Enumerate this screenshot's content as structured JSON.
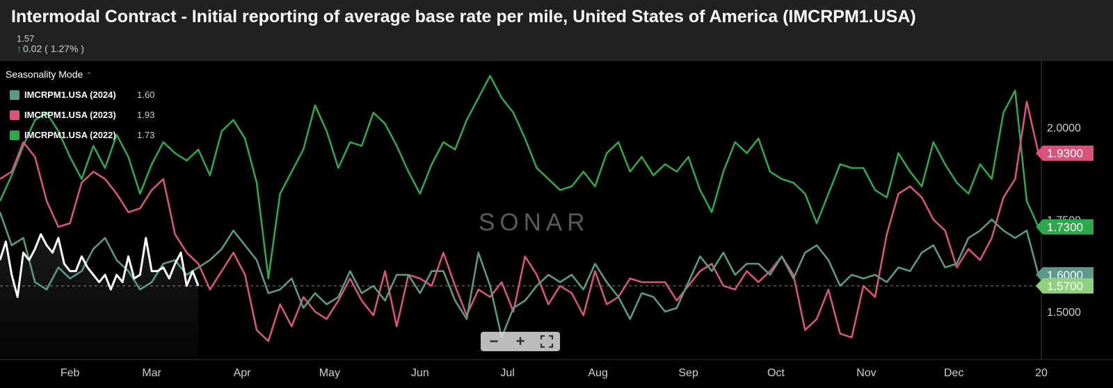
{
  "header": {
    "title": "Intermodal Contract - Initial reporting of average base rate per mile, United States of America (IMCRPM1.USA)",
    "last_value": "1.57",
    "change": "0.02 ( 1.27% )"
  },
  "legend": {
    "title": "Seasonality Mode",
    "items": [
      {
        "name": "IMCRPM1.USA (2024)",
        "value": "1.60",
        "color": "#5b9a8b"
      },
      {
        "name": "IMCRPM1.USA (2023)",
        "value": "1.93",
        "color": "#d9547c"
      },
      {
        "name": "IMCRPM1.USA (2022)",
        "value": "1.73",
        "color": "#2ea84c"
      }
    ]
  },
  "watermark": "SONAR",
  "chart_data": {
    "type": "line",
    "x_unit": "day of year",
    "xlim": [
      8,
      365
    ],
    "ylim": [
      1.37,
      2.18
    ],
    "x_ticks": [
      {
        "label": "Feb",
        "x": 32
      },
      {
        "label": "Mar",
        "x": 60
      },
      {
        "label": "Apr",
        "x": 91
      },
      {
        "label": "May",
        "x": 121
      },
      {
        "label": "Jun",
        "x": 152
      },
      {
        "label": "Jul",
        "x": 182
      },
      {
        "label": "Aug",
        "x": 213
      },
      {
        "label": "Sep",
        "x": 244
      },
      {
        "label": "Oct",
        "x": 274
      },
      {
        "label": "Nov",
        "x": 305
      },
      {
        "label": "Dec",
        "x": 335
      },
      {
        "label": "20",
        "x": 365
      }
    ],
    "y_ticks": [
      "1.5000",
      "1.7500",
      "2.0000"
    ],
    "current_line": 1.57,
    "series": [
      {
        "name": "2022",
        "color": "#2ea84c",
        "x": [
          8,
          12,
          16,
          20,
          24,
          28,
          32,
          36,
          40,
          44,
          48,
          52,
          56,
          60,
          64,
          68,
          72,
          76,
          80,
          84,
          88,
          92,
          96,
          100,
          104,
          108,
          112,
          116,
          120,
          124,
          128,
          132,
          136,
          140,
          144,
          148,
          152,
          156,
          160,
          164,
          168,
          172,
          176,
          180,
          184,
          188,
          192,
          196,
          200,
          204,
          208,
          212,
          216,
          220,
          224,
          228,
          232,
          236,
          240,
          244,
          248,
          252,
          256,
          260,
          264,
          268,
          272,
          276,
          280,
          284,
          288,
          292,
          296,
          300,
          304,
          308,
          312,
          316,
          320,
          324,
          328,
          332,
          336,
          340,
          344,
          348,
          352,
          356,
          360,
          364
        ],
        "values": [
          1.8,
          1.87,
          1.95,
          2.02,
          2.04,
          1.99,
          1.92,
          1.86,
          1.95,
          1.89,
          1.98,
          1.92,
          1.82,
          1.9,
          1.96,
          1.93,
          1.91,
          1.94,
          1.87,
          1.99,
          2.02,
          1.97,
          1.85,
          1.59,
          1.82,
          1.88,
          1.94,
          2.06,
          1.99,
          1.89,
          1.96,
          1.95,
          2.04,
          2.01,
          1.95,
          1.88,
          1.82,
          1.9,
          1.96,
          1.94,
          2.02,
          2.08,
          2.14,
          2.08,
          2.04,
          1.97,
          1.89,
          1.86,
          1.83,
          1.84,
          1.88,
          1.84,
          1.93,
          1.96,
          1.88,
          1.92,
          1.87,
          1.9,
          1.88,
          1.92,
          1.83,
          1.77,
          1.88,
          1.96,
          1.93,
          1.97,
          1.88,
          1.86,
          1.85,
          1.82,
          1.74,
          1.82,
          1.9,
          1.89,
          1.89,
          1.83,
          1.81,
          1.93,
          1.88,
          1.84,
          1.96,
          1.9,
          1.85,
          1.82,
          1.9,
          1.86,
          2.04,
          2.1,
          1.8,
          1.73
        ]
      },
      {
        "name": "2023",
        "color": "#d9547c",
        "x": [
          8,
          12,
          16,
          20,
          24,
          28,
          32,
          36,
          40,
          44,
          48,
          52,
          56,
          60,
          64,
          68,
          72,
          76,
          80,
          84,
          88,
          92,
          96,
          100,
          104,
          108,
          112,
          116,
          120,
          124,
          128,
          132,
          136,
          140,
          144,
          148,
          152,
          156,
          160,
          164,
          168,
          172,
          176,
          180,
          184,
          188,
          192,
          196,
          200,
          204,
          208,
          212,
          216,
          220,
          224,
          228,
          232,
          236,
          240,
          244,
          248,
          252,
          256,
          260,
          264,
          268,
          272,
          276,
          280,
          284,
          288,
          292,
          296,
          300,
          304,
          308,
          312,
          316,
          320,
          324,
          328,
          332,
          336,
          340,
          344,
          348,
          352,
          356,
          360,
          364
        ],
        "values": [
          1.86,
          1.88,
          1.96,
          1.92,
          1.8,
          1.73,
          1.74,
          1.85,
          1.88,
          1.86,
          1.82,
          1.77,
          1.78,
          1.83,
          1.86,
          1.71,
          1.66,
          1.63,
          1.56,
          1.61,
          1.66,
          1.6,
          1.45,
          1.42,
          1.52,
          1.46,
          1.54,
          1.5,
          1.48,
          1.53,
          1.59,
          1.53,
          1.49,
          1.61,
          1.46,
          1.6,
          1.59,
          1.57,
          1.66,
          1.57,
          1.49,
          1.56,
          1.54,
          1.58,
          1.5,
          1.65,
          1.6,
          1.52,
          1.57,
          1.55,
          1.49,
          1.61,
          1.52,
          1.54,
          1.59,
          1.58,
          1.58,
          1.58,
          1.53,
          1.57,
          1.61,
          1.63,
          1.57,
          1.56,
          1.61,
          1.58,
          1.61,
          1.65,
          1.6,
          1.45,
          1.48,
          1.56,
          1.44,
          1.43,
          1.57,
          1.54,
          1.71,
          1.82,
          1.84,
          1.81,
          1.75,
          1.72,
          1.62,
          1.67,
          1.64,
          1.7,
          1.81,
          1.86,
          2.07,
          1.93
        ]
      },
      {
        "name": "2024",
        "color": "#5b9a8b",
        "x": [
          8,
          12,
          16,
          20,
          24,
          28,
          32,
          36,
          40,
          44,
          48,
          52,
          56,
          60,
          64,
          68,
          72,
          76,
          80,
          84,
          88,
          92,
          96,
          100,
          104,
          108,
          112,
          116,
          120,
          124,
          128,
          132,
          136,
          140,
          144,
          148,
          152,
          156,
          160,
          164,
          168,
          172,
          176,
          180,
          184,
          188,
          192,
          196,
          200,
          204,
          208,
          212,
          216,
          220,
          224,
          228,
          232,
          236,
          240,
          244,
          248,
          252,
          256,
          260,
          264,
          268,
          272,
          276,
          280,
          284,
          288,
          292,
          296,
          300,
          304,
          308,
          312,
          316,
          320,
          324,
          328,
          332,
          336,
          340,
          344,
          348,
          352,
          356,
          360,
          364
        ],
        "values": [
          1.77,
          1.68,
          1.7,
          1.58,
          1.56,
          1.62,
          1.59,
          1.61,
          1.67,
          1.7,
          1.64,
          1.61,
          1.56,
          1.58,
          1.63,
          1.64,
          1.6,
          1.62,
          1.64,
          1.67,
          1.72,
          1.68,
          1.64,
          1.55,
          1.56,
          1.59,
          1.51,
          1.55,
          1.52,
          1.54,
          1.61,
          1.55,
          1.57,
          1.53,
          1.6,
          1.6,
          1.55,
          1.61,
          1.61,
          1.53,
          1.48,
          1.66,
          1.57,
          1.43,
          1.51,
          1.53,
          1.57,
          1.6,
          1.58,
          1.6,
          1.56,
          1.63,
          1.58,
          1.54,
          1.48,
          1.55,
          1.54,
          1.5,
          1.51,
          1.58,
          1.65,
          1.61,
          1.66,
          1.6,
          1.63,
          1.63,
          1.6,
          1.65,
          1.59,
          1.66,
          1.68,
          1.64,
          1.57,
          1.6,
          1.59,
          1.6,
          1.58,
          1.62,
          1.61,
          1.66,
          1.68,
          1.62,
          1.63,
          1.7,
          1.72,
          1.75,
          1.72,
          1.7,
          1.72,
          1.6
        ]
      },
      {
        "name": "current",
        "color": "#ffffff",
        "x": [
          8,
          10,
          12,
          14,
          16,
          18,
          20,
          22,
          24,
          26,
          28,
          30,
          32,
          34,
          36,
          38,
          40,
          42,
          44,
          46,
          48,
          50,
          52,
          54,
          56,
          58,
          60,
          62,
          64,
          66,
          68,
          70,
          72,
          74,
          76
        ],
        "values": [
          1.64,
          1.69,
          1.6,
          1.54,
          1.66,
          1.64,
          1.67,
          1.71,
          1.68,
          1.66,
          1.7,
          1.63,
          1.61,
          1.61,
          1.65,
          1.62,
          1.6,
          1.58,
          1.6,
          1.56,
          1.6,
          1.58,
          1.65,
          1.59,
          1.6,
          1.7,
          1.61,
          1.61,
          1.62,
          1.59,
          1.63,
          1.66,
          1.57,
          1.61,
          1.57
        ]
      }
    ],
    "right_labels": [
      {
        "text": "1.9300",
        "value": 1.93,
        "color": "#d9547c"
      },
      {
        "text": "1.7300",
        "value": 1.73,
        "color": "#2ea84c"
      },
      {
        "text": "1.6000",
        "value": 1.6,
        "color": "#5b9a8b"
      },
      {
        "text": "1.5700",
        "value": 1.57,
        "color": "#8fd17e"
      }
    ]
  }
}
